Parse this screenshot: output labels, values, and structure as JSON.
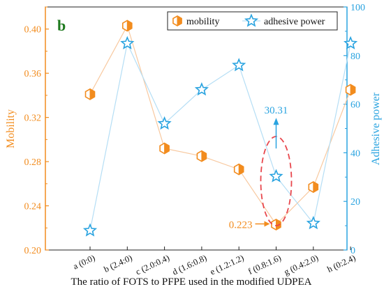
{
  "chart_data": {
    "type": "line",
    "panel_label": "b",
    "xlabel": "The ratio of FOTS to PFPE used in the modified UDPEA",
    "categories": [
      "a (0:0)",
      "b (2.4:0)",
      "c (2.0:0.4)",
      "d (1.6:0.8)",
      "e (1.2:1.2)",
      "f (0.8:1.6)",
      "g (0.4:2.0)",
      "h (0:2.4)"
    ],
    "y_left": {
      "label": "Mobility",
      "ylim": [
        0.2,
        0.42
      ],
      "ticks": [
        "0.20",
        "0.24",
        "0.28",
        "0.32",
        "0.36",
        "0.40"
      ],
      "color": "#f28c1e"
    },
    "y_right": {
      "label": "Adhesive power",
      "ylim": [
        0,
        100
      ],
      "ticks": [
        "0",
        "20",
        "40",
        "60",
        "80",
        "100"
      ],
      "color": "#29a3e0"
    },
    "series": [
      {
        "name": "mobility",
        "axis": "left",
        "marker": "half-filled-hexagon",
        "color": "#f28c1e",
        "values": [
          0.341,
          0.403,
          0.292,
          0.285,
          0.273,
          0.223,
          0.257,
          0.345
        ]
      },
      {
        "name": "adhesive power",
        "axis": "right",
        "marker": "star",
        "color": "#29a3e0",
        "values": [
          8,
          85,
          52,
          66,
          76,
          30.31,
          11,
          85
        ]
      }
    ],
    "annotations": [
      {
        "text": "30.31",
        "series": "adhesive power",
        "index": 5,
        "color": "#29a3e0"
      },
      {
        "text": "0.223",
        "series": "mobility",
        "index": 5,
        "color": "#f28c1e"
      }
    ],
    "legend_position": "top-right",
    "highlight": {
      "index": 5,
      "color": "#e8474d",
      "style": "dashed ellipse"
    },
    "grid": false
  }
}
